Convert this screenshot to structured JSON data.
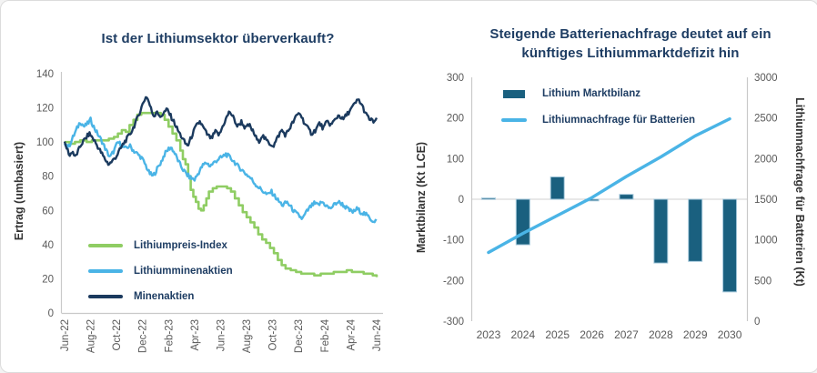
{
  "card": {
    "background": "#FFFFFF",
    "border_color": "#DCDCDC"
  },
  "styles": {
    "title_color": "#1E3D63",
    "tick_label_color": "#595959",
    "axis_title_color": "#333333",
    "axis_line_color": "#C9C9C9",
    "zero_gridline_color": "#D9D9D9",
    "legend_text_color": "#1E3D63"
  },
  "chart_data": [
    {
      "type": "line",
      "title": "Ist der Lithiumsektor überverkauft?",
      "ylabel": "Ertrag (umbasiert)",
      "ylim": [
        0,
        140
      ],
      "yticks": [
        0,
        20,
        40,
        60,
        80,
        100,
        120,
        140
      ],
      "x_unit": "months since Jun-2022",
      "xlim": [
        0,
        24
      ],
      "xtick_months": [
        0,
        2,
        4,
        6,
        8,
        10,
        12,
        14,
        16,
        18,
        20,
        22,
        24
      ],
      "xtick_labels": [
        "Jun-22",
        "Aug-22",
        "Oct-22",
        "Dec-22",
        "Feb-23",
        "Apr-23",
        "Jun-23",
        "Aug-23",
        "Oct-23",
        "Dec-23",
        "Feb-24",
        "Apr-24",
        "Jun-24"
      ],
      "grid": false,
      "legend_position": "lower-left",
      "series": [
        {
          "name": "Lithiumpreis-Index",
          "color": "#8FCD63",
          "style": "step",
          "points": [
            [
              0,
              100
            ],
            [
              0.4,
              99
            ],
            [
              0.8,
              100
            ],
            [
              1.2,
              101
            ],
            [
              1.7,
              100
            ],
            [
              2.1,
              101
            ],
            [
              2.6,
              101
            ],
            [
              3.0,
              101
            ],
            [
              3.4,
              102
            ],
            [
              3.8,
              103
            ],
            [
              4.1,
              105
            ],
            [
              4.4,
              107
            ],
            [
              4.7,
              106
            ],
            [
              5.0,
              110
            ],
            [
              5.3,
              113
            ],
            [
              5.6,
              116
            ],
            [
              5.9,
              117
            ],
            [
              6.4,
              117
            ],
            [
              6.9,
              117
            ],
            [
              7.4,
              116
            ],
            [
              7.7,
              113
            ],
            [
              8.0,
              109
            ],
            [
              8.3,
              105
            ],
            [
              8.6,
              101
            ],
            [
              8.9,
              95
            ],
            [
              9.1,
              90
            ],
            [
              9.3,
              87
            ],
            [
              9.5,
              80
            ],
            [
              9.7,
              72
            ],
            [
              9.9,
              68
            ],
            [
              10.1,
              65
            ],
            [
              10.3,
              61
            ],
            [
              10.5,
              60
            ],
            [
              10.7,
              63
            ],
            [
              10.9,
              67
            ],
            [
              11.1,
              71
            ],
            [
              11.4,
              73
            ],
            [
              11.7,
              74
            ],
            [
              12.1,
              74
            ],
            [
              12.5,
              73
            ],
            [
              12.8,
              71
            ],
            [
              13.1,
              67
            ],
            [
              13.4,
              63
            ],
            [
              13.7,
              59
            ],
            [
              14.0,
              56
            ],
            [
              14.3,
              53
            ],
            [
              14.6,
              50
            ],
            [
              14.9,
              46
            ],
            [
              15.2,
              43
            ],
            [
              15.5,
              41
            ],
            [
              15.8,
              38
            ],
            [
              16.1,
              35
            ],
            [
              16.4,
              31
            ],
            [
              16.7,
              28
            ],
            [
              17.0,
              26
            ],
            [
              17.4,
              25
            ],
            [
              17.8,
              24
            ],
            [
              18.2,
              23
            ],
            [
              18.7,
              23
            ],
            [
              19.2,
              22
            ],
            [
              19.7,
              23
            ],
            [
              20.2,
              23
            ],
            [
              20.7,
              24
            ],
            [
              21.2,
              24
            ],
            [
              21.7,
              25
            ],
            [
              22.1,
              24
            ],
            [
              22.5,
              24
            ],
            [
              23.0,
              23
            ],
            [
              23.4,
              23
            ],
            [
              23.7,
              22
            ],
            [
              24,
              21
            ]
          ]
        },
        {
          "name": "Lithiumminenaktien",
          "color": "#4AB4E6",
          "style": "line",
          "points": [
            [
              0,
              100
            ],
            [
              0.3,
              97
            ],
            [
              0.6,
              102
            ],
            [
              0.9,
              107
            ],
            [
              1.2,
              112
            ],
            [
              1.5,
              109
            ],
            [
              1.8,
              111
            ],
            [
              2.0,
              113
            ],
            [
              2.3,
              108
            ],
            [
              2.6,
              104
            ],
            [
              2.9,
              100
            ],
            [
              3.2,
              95
            ],
            [
              3.5,
              91
            ],
            [
              3.8,
              95
            ],
            [
              4.1,
              100
            ],
            [
              4.4,
              98
            ],
            [
              4.7,
              96
            ],
            [
              5.0,
              98
            ],
            [
              5.3,
              95
            ],
            [
              5.6,
              93
            ],
            [
              5.9,
              91
            ],
            [
              6.2,
              87
            ],
            [
              6.5,
              82
            ],
            [
              6.8,
              80
            ],
            [
              7.1,
              84
            ],
            [
              7.4,
              88
            ],
            [
              7.7,
              93
            ],
            [
              8.0,
              96
            ],
            [
              8.2,
              97
            ],
            [
              8.5,
              93
            ],
            [
              8.8,
              88
            ],
            [
              9.1,
              84
            ],
            [
              9.4,
              81
            ],
            [
              9.7,
              79
            ],
            [
              10.0,
              78
            ],
            [
              10.3,
              82
            ],
            [
              10.6,
              86
            ],
            [
              10.9,
              88
            ],
            [
              11.2,
              86
            ],
            [
              11.5,
              88
            ],
            [
              11.8,
              90
            ],
            [
              12.1,
              91
            ],
            [
              12.4,
              93
            ],
            [
              12.7,
              91
            ],
            [
              13.0,
              89
            ],
            [
              13.3,
              86
            ],
            [
              13.6,
              84
            ],
            [
              14.0,
              81
            ],
            [
              14.3,
              79
            ],
            [
              14.6,
              76
            ],
            [
              15.0,
              73
            ],
            [
              15.3,
              71
            ],
            [
              15.6,
              69
            ],
            [
              15.9,
              71
            ],
            [
              16.2,
              68
            ],
            [
              16.5,
              65
            ],
            [
              16.8,
              63
            ],
            [
              17.1,
              65
            ],
            [
              17.4,
              62
            ],
            [
              17.7,
              59
            ],
            [
              18.0,
              57
            ],
            [
              18.3,
              55
            ],
            [
              18.6,
              59
            ],
            [
              18.9,
              62
            ],
            [
              19.2,
              64
            ],
            [
              19.5,
              63
            ],
            [
              19.8,
              65
            ],
            [
              20.1,
              63
            ],
            [
              20.4,
              61
            ],
            [
              20.7,
              63
            ],
            [
              21.0,
              65
            ],
            [
              21.3,
              64
            ],
            [
              21.6,
              62
            ],
            [
              21.9,
              60
            ],
            [
              22.2,
              59
            ],
            [
              22.5,
              61
            ],
            [
              22.8,
              59
            ],
            [
              23.1,
              58
            ],
            [
              23.4,
              56
            ],
            [
              23.7,
              54
            ],
            [
              24,
              54
            ]
          ]
        },
        {
          "name": "Minenaktien",
          "color": "#1B3A5E",
          "style": "line",
          "points": [
            [
              0,
              99
            ],
            [
              0.2,
              96
            ],
            [
              0.4,
              92
            ],
            [
              0.6,
              95
            ],
            [
              0.8,
              91
            ],
            [
              1.0,
              94
            ],
            [
              1.3,
              99
            ],
            [
              1.6,
              102
            ],
            [
              1.9,
              105
            ],
            [
              2.2,
              102
            ],
            [
              2.5,
              98
            ],
            [
              2.8,
              94
            ],
            [
              3.1,
              90
            ],
            [
              3.4,
              87
            ],
            [
              3.7,
              89
            ],
            [
              4.0,
              92
            ],
            [
              4.3,
              96
            ],
            [
              4.6,
              100
            ],
            [
              4.9,
              103
            ],
            [
              5.2,
              107
            ],
            [
              5.5,
              112
            ],
            [
              5.8,
              118
            ],
            [
              6.1,
              124
            ],
            [
              6.3,
              127
            ],
            [
              6.5,
              123
            ],
            [
              6.7,
              118
            ],
            [
              6.9,
              115
            ],
            [
              7.1,
              119
            ],
            [
              7.3,
              114
            ],
            [
              7.6,
              117
            ],
            [
              7.9,
              119
            ],
            [
              8.1,
              116
            ],
            [
              8.4,
              112
            ],
            [
              8.7,
              107
            ],
            [
              9.0,
              103
            ],
            [
              9.3,
              99
            ],
            [
              9.5,
              98
            ],
            [
              9.8,
              104
            ],
            [
              10.1,
              109
            ],
            [
              10.4,
              112
            ],
            [
              10.7,
              108
            ],
            [
              11.0,
              104
            ],
            [
              11.3,
              102
            ],
            [
              11.6,
              106
            ],
            [
              11.9,
              104
            ],
            [
              12.2,
              110
            ],
            [
              12.5,
              115
            ],
            [
              12.7,
              118
            ],
            [
              13.0,
              114
            ],
            [
              13.3,
              109
            ],
            [
              13.6,
              112
            ],
            [
              13.9,
              108
            ],
            [
              14.2,
              110
            ],
            [
              14.5,
              106
            ],
            [
              14.9,
              100
            ],
            [
              15.2,
              104
            ],
            [
              15.5,
              101
            ],
            [
              15.8,
              99
            ],
            [
              16.1,
              98
            ],
            [
              16.4,
              103
            ],
            [
              16.7,
              107
            ],
            [
              17.0,
              104
            ],
            [
              17.3,
              108
            ],
            [
              17.6,
              112
            ],
            [
              17.9,
              116
            ],
            [
              18.1,
              117
            ],
            [
              18.4,
              112
            ],
            [
              18.7,
              108
            ],
            [
              19.0,
              105
            ],
            [
              19.3,
              107
            ],
            [
              19.6,
              111
            ],
            [
              19.9,
              108
            ],
            [
              20.2,
              112
            ],
            [
              20.5,
              110
            ],
            [
              20.8,
              113
            ],
            [
              21.1,
              116
            ],
            [
              21.4,
              113
            ],
            [
              21.7,
              116
            ],
            [
              22.0,
              119
            ],
            [
              22.3,
              122
            ],
            [
              22.6,
              125
            ],
            [
              22.9,
              121
            ],
            [
              23.2,
              116
            ],
            [
              23.5,
              113
            ],
            [
              23.8,
              112
            ],
            [
              24,
              113
            ]
          ]
        }
      ]
    },
    {
      "type": "bar+line",
      "title_lines": [
        "Steigende Batterienachfrage deutet auf ein",
        "künftiges Lithiummarktdefizit hin"
      ],
      "categories": [
        "2023",
        "2024",
        "2025",
        "2026",
        "2027",
        "2028",
        "2029",
        "2030"
      ],
      "left_axis": {
        "label": "Marktbilanz (Kt LCE)",
        "range": [
          -300,
          300
        ],
        "ticks": [
          300,
          200,
          100,
          0,
          -100,
          -200,
          -300
        ]
      },
      "right_axis": {
        "label": "Lithiumnachfrage für Batterien (Kt)",
        "range": [
          0,
          3000
        ],
        "ticks": [
          3000,
          2500,
          2000,
          1500,
          1000,
          500,
          0
        ]
      },
      "bar_series": {
        "name": "Lithium Marktbilanz",
        "axis": "left",
        "color": "#1A607F",
        "edge_color": "#A6C9DC",
        "values": [
          3,
          -112,
          55,
          -4,
          12,
          -157,
          -153,
          -228
        ]
      },
      "line_series": {
        "name": "Lithiumnachfrage für Batterien",
        "axis": "right",
        "color": "#4AB4E6",
        "values": [
          845,
          1080,
          1300,
          1520,
          1780,
          2020,
          2280,
          2490
        ]
      },
      "grid": "zero-line-only",
      "legend_position": "upper-left"
    }
  ]
}
